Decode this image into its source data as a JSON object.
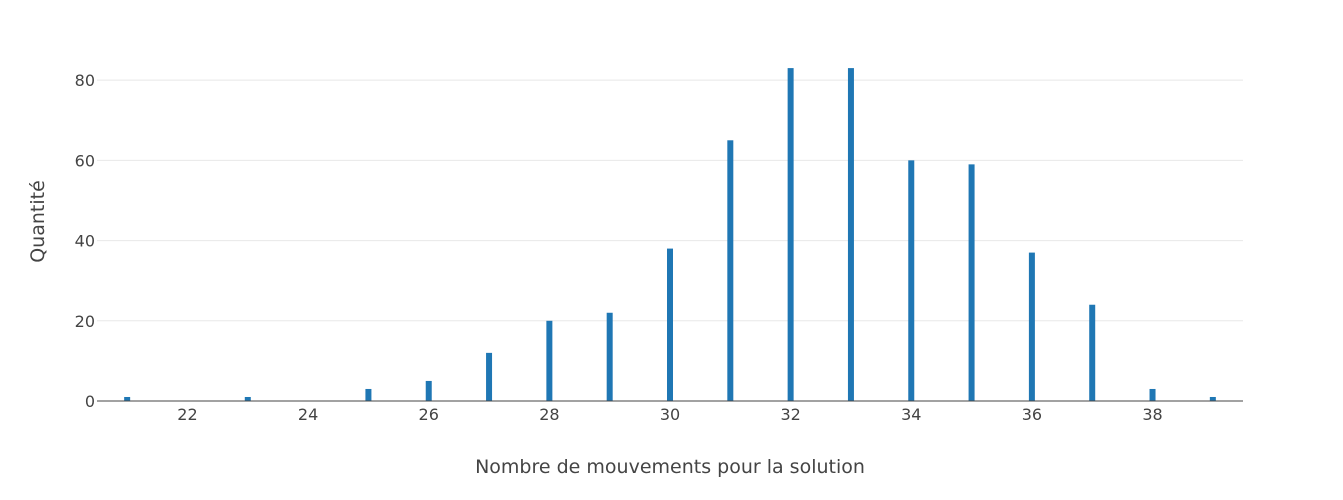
{
  "chart_data": {
    "type": "bar",
    "xlabel": "Nombre de mouvements pour la solution",
    "ylabel": "Quantité",
    "bar_color": "#1f77b4",
    "grid": true,
    "xlim": [
      20.5,
      39.5
    ],
    "ylim": [
      0,
      92
    ],
    "x_ticks": [
      22,
      24,
      26,
      28,
      30,
      32,
      34,
      36,
      38
    ],
    "y_ticks": [
      0,
      20,
      40,
      60,
      80
    ],
    "points": [
      {
        "x": 21,
        "y": 1
      },
      {
        "x": 23,
        "y": 1
      },
      {
        "x": 25,
        "y": 3
      },
      {
        "x": 26,
        "y": 5
      },
      {
        "x": 27,
        "y": 12
      },
      {
        "x": 28,
        "y": 20
      },
      {
        "x": 29,
        "y": 22
      },
      {
        "x": 30,
        "y": 38
      },
      {
        "x": 31,
        "y": 65
      },
      {
        "x": 32,
        "y": 83
      },
      {
        "x": 33,
        "y": 83
      },
      {
        "x": 34,
        "y": 60
      },
      {
        "x": 35,
        "y": 59
      },
      {
        "x": 36,
        "y": 37
      },
      {
        "x": 37,
        "y": 24
      },
      {
        "x": 38,
        "y": 3
      },
      {
        "x": 39,
        "y": 1
      }
    ]
  }
}
